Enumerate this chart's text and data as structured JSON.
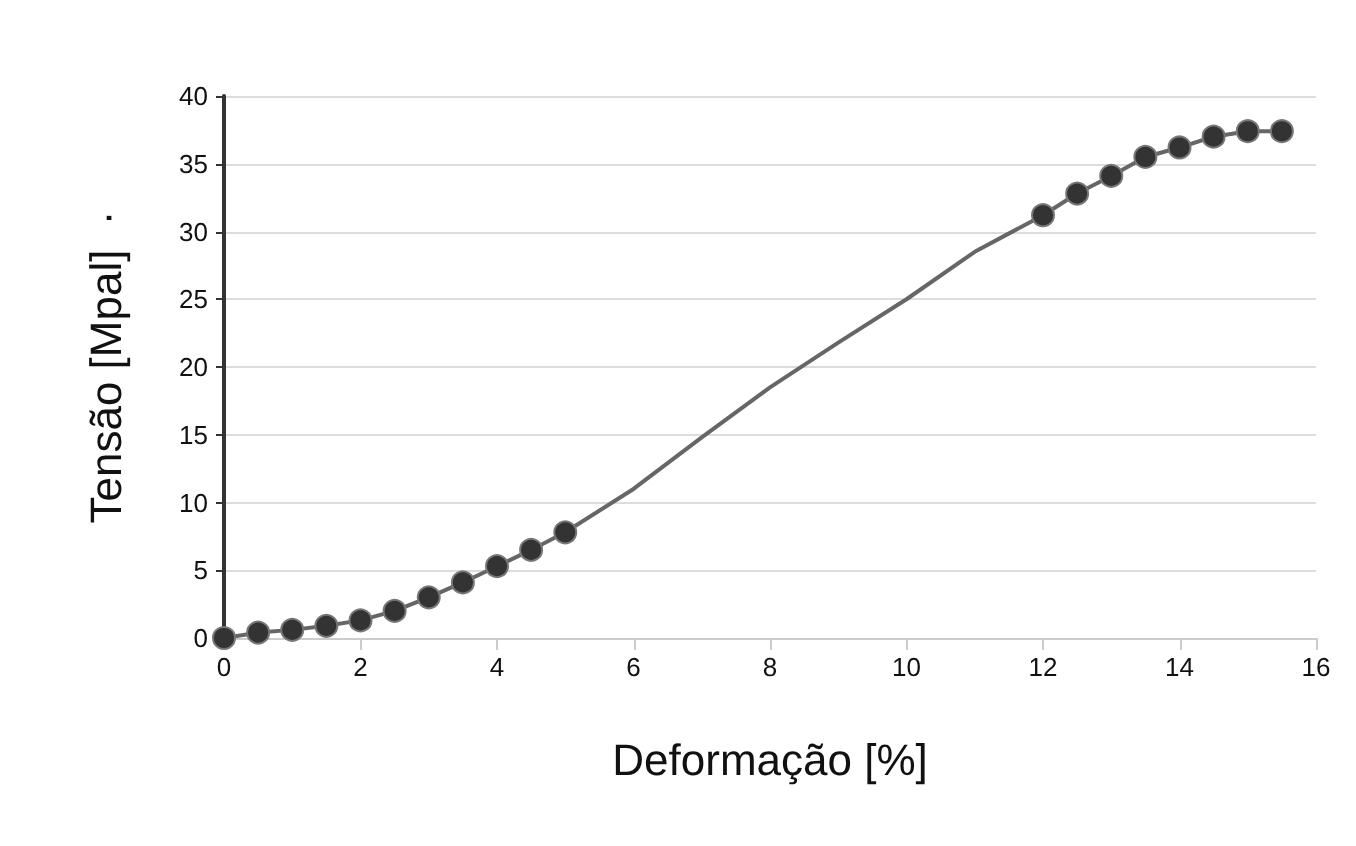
{
  "chart_data": {
    "type": "line",
    "xlabel": "Deformação [%]",
    "ylabel": "Tensão [Mpal]  ·",
    "xlim": [
      0,
      16
    ],
    "xticks": [
      0,
      2,
      4,
      6,
      8,
      10,
      12,
      14,
      16
    ],
    "ylim": [
      0,
      40
    ],
    "yticks": [
      0,
      5,
      10,
      15,
      20,
      25,
      30,
      35,
      40
    ],
    "grid": "y",
    "line_style": "solid",
    "series": [
      {
        "color": "#333333",
        "marker": "circle",
        "x": [
          0,
          0.5,
          1,
          1.5,
          2,
          2.5,
          3,
          3.5,
          4,
          4.5,
          5
        ],
        "values": [
          0,
          0.4,
          0.6,
          0.9,
          1.3,
          2.0,
          3.0,
          4.1,
          5.3,
          6.5,
          7.8
        ]
      },
      {
        "color": "#666666",
        "marker": "none",
        "x": [
          5,
          6,
          7,
          8,
          9,
          10,
          11,
          12
        ],
        "values": [
          7.8,
          11,
          14.8,
          18.5,
          21.8,
          25,
          28.5,
          31.2
        ]
      },
      {
        "color": "#333333",
        "marker": "circle",
        "x": [
          12,
          12.5,
          13,
          13.5,
          14,
          14.5,
          15,
          15.5
        ],
        "values": [
          31.2,
          32.8,
          34.1,
          35.5,
          36.2,
          37.0,
          37.4,
          37.4
        ]
      }
    ]
  }
}
